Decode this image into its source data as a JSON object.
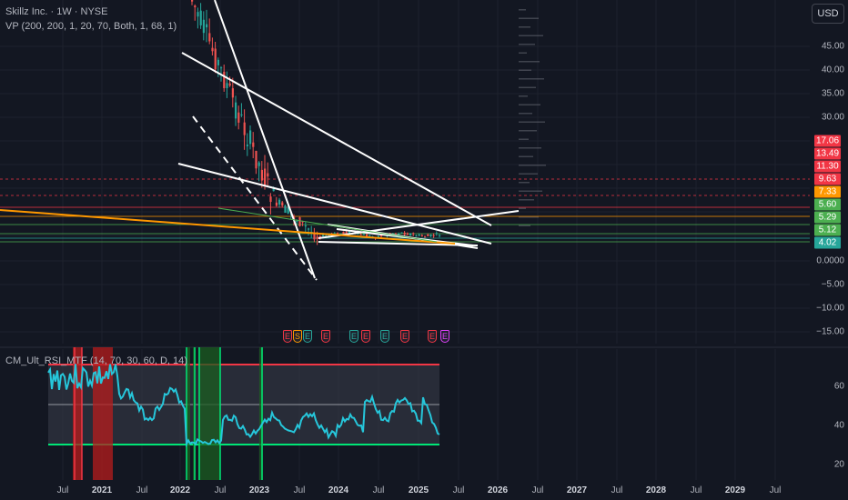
{
  "header": {
    "symbol": "Skillz Inc. · 1W · NYSE",
    "vp_indicator": "VP (200, 200, 1, 20, 70, Both, 1, 68, 1)",
    "rsi_indicator": "CM_Ult_RSI_MTF (14, 70, 30, 60, D, 14)"
  },
  "currency_button": "USD",
  "price_axis": {
    "labels": [
      "45.00",
      "40.00",
      "35.00",
      "30.00",
      "0.0000",
      "−5.00",
      "−10.00",
      "−15.00"
    ],
    "tags": [
      {
        "value": "17.06",
        "color": "#f23645"
      },
      {
        "value": "13.49",
        "color": "#f23645"
      },
      {
        "value": "11.30",
        "color": "#f23645"
      },
      {
        "value": "9.63",
        "color": "#f23645"
      },
      {
        "value": "7.33",
        "color": "#ff9800"
      },
      {
        "value": "5.60",
        "color": "#4caf50"
      },
      {
        "value": "5.29",
        "color": "#4caf50"
      },
      {
        "value": "5.12",
        "color": "#4caf50"
      },
      {
        "value": "4.02",
        "color": "#26a69a"
      }
    ]
  },
  "rsi_axis": {
    "labels": [
      "60",
      "40",
      "20"
    ]
  },
  "time_axis": {
    "labels": [
      {
        "text": "Jul",
        "year": false
      },
      {
        "text": "2021",
        "year": true
      },
      {
        "text": "Jul",
        "year": false
      },
      {
        "text": "2022",
        "year": true
      },
      {
        "text": "Jul",
        "year": false
      },
      {
        "text": "2023",
        "year": true
      },
      {
        "text": "Jul",
        "year": false
      },
      {
        "text": "2024",
        "year": true
      },
      {
        "text": "Jul",
        "year": false
      },
      {
        "text": "2025",
        "year": true
      },
      {
        "text": "Jul",
        "year": false
      },
      {
        "text": "2026",
        "year": true
      },
      {
        "text": "Jul",
        "year": false
      },
      {
        "text": "2027",
        "year": true
      },
      {
        "text": "Jul",
        "year": false
      },
      {
        "text": "2028",
        "year": true
      },
      {
        "text": "Jul",
        "year": false
      },
      {
        "text": "2029",
        "year": true
      },
      {
        "text": "Jul",
        "year": false
      }
    ]
  },
  "earnings_markers": [
    {
      "glyph": "E",
      "color": "#f23645"
    },
    {
      "glyph": "S",
      "color": "#ff9800"
    },
    {
      "glyph": "E",
      "color": "#26a69a"
    },
    {
      "glyph": "E",
      "color": "#f23645"
    },
    {
      "glyph": "E",
      "color": "#26a69a"
    },
    {
      "glyph": "E",
      "color": "#f23645"
    },
    {
      "glyph": "E",
      "color": "#26a69a"
    },
    {
      "glyph": "E",
      "color": "#f23645"
    },
    {
      "glyph": "E",
      "color": "#f23645"
    },
    {
      "glyph": "E",
      "color": "#e040fb"
    }
  ],
  "colors": {
    "background": "#131722",
    "bull": "#26a69a",
    "bear": "#ef5350",
    "rsi_line": "#26c6da",
    "overbought": "#f23645",
    "oversold": "#00e676",
    "trendline": "#ffffff",
    "orange_line": "#ff9800"
  }
}
